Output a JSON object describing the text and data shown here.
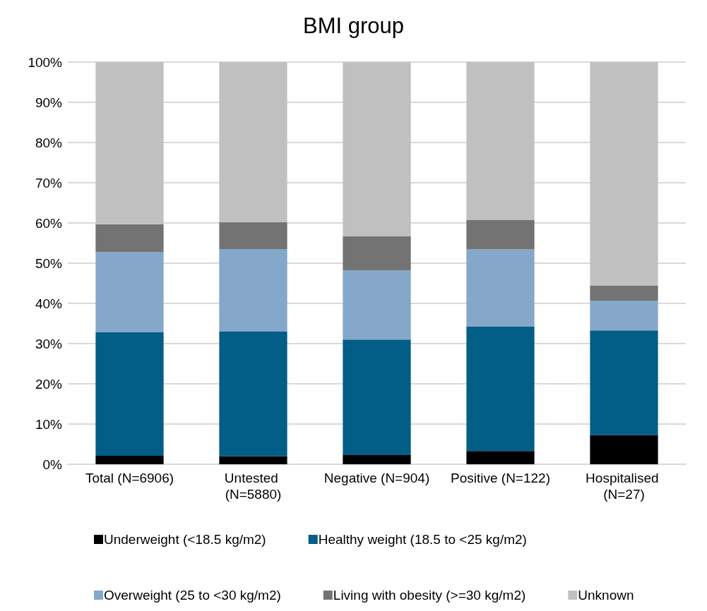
{
  "chart_data": {
    "type": "bar",
    "title": "BMI group",
    "stacked": true,
    "categories": [
      "Total (N=6906)",
      "Untested (N=5880)",
      "Negative (N=904)",
      "Positive (N=122)",
      "Hospitalised (N=27)"
    ],
    "series": [
      {
        "name": "Underweight (<18.5 kg/m2)",
        "color": "#000000",
        "values": [
          2.1,
          2.0,
          2.3,
          3.3,
          7.3
        ]
      },
      {
        "name": "Healthy weight (18.5 to <25 kg/m2)",
        "color": "#025d87",
        "values": [
          30.7,
          31.0,
          28.7,
          31.0,
          26.0
        ]
      },
      {
        "name": "Overweight (25 to <30 kg/m2)",
        "color": "#85a7c9",
        "values": [
          20.0,
          20.5,
          17.2,
          19.1,
          7.4
        ]
      },
      {
        "name": "Living with obesity (>=30 kg/m2)",
        "color": "#737373",
        "values": [
          6.9,
          6.7,
          8.5,
          7.3,
          3.7
        ]
      },
      {
        "name": "Unknown",
        "color": "#c0c0c0",
        "values": [
          40.3,
          39.8,
          43.3,
          39.3,
          55.6
        ]
      }
    ],
    "ylim": [
      0,
      100
    ],
    "yticks": [
      {
        "value": 0,
        "label": "0%"
      },
      {
        "value": 10,
        "label": "10%"
      },
      {
        "value": 20,
        "label": "20%"
      },
      {
        "value": 30,
        "label": "30%"
      },
      {
        "value": 40,
        "label": "40%"
      },
      {
        "value": 50,
        "label": "50%"
      },
      {
        "value": 60,
        "label": "60%"
      },
      {
        "value": 70,
        "label": "70%"
      },
      {
        "value": 80,
        "label": "80%"
      },
      {
        "value": 90,
        "label": "90%"
      },
      {
        "value": 100,
        "label": "100%"
      }
    ],
    "grid": "y",
    "legend": "bottom"
  }
}
